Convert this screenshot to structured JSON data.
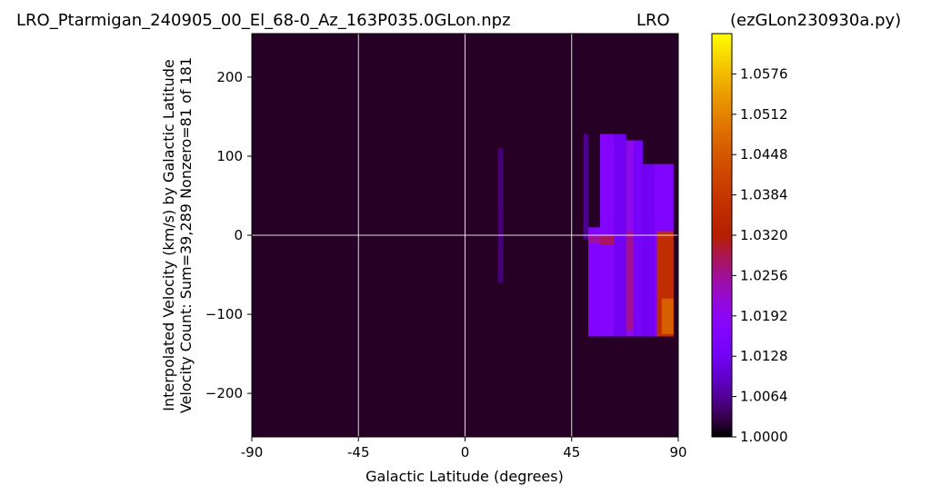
{
  "header": {
    "left_title": "LRO_Ptarmigan_240905_00_El_68-0_Az_163P035.0GLon.npz",
    "center_title": "LRO",
    "right_title": "(ezGLon230930a.py)"
  },
  "chart_data": {
    "type": "heatmap",
    "xlabel": "Galactic Latitude (degrees)",
    "ylabel_line1": "Interpolated Velocity (km/s) by Galactic Latitude",
    "ylabel_line2": "Velocity Count: Sum=39,289 Nonzero=81 of 181",
    "xlim": [
      -90,
      90
    ],
    "ylim": [
      -255,
      255
    ],
    "x_ticks": [
      {
        "value": -90,
        "label": "-90"
      },
      {
        "value": -45,
        "label": "-45"
      },
      {
        "value": 0,
        "label": "0"
      },
      {
        "value": 45,
        "label": "45"
      },
      {
        "value": 90,
        "label": "90"
      }
    ],
    "y_ticks": [
      {
        "value": 200,
        "label": "200"
      },
      {
        "value": 100,
        "label": "100"
      },
      {
        "value": 0,
        "label": "0"
      },
      {
        "value": -100,
        "label": "−100"
      },
      {
        "value": -200,
        "label": "−200"
      }
    ],
    "grid_x": [
      -45,
      0,
      45
    ],
    "grid_y": [
      0
    ],
    "colorbar": {
      "min": 1.0,
      "max": 1.064,
      "colormap": "gnuplot",
      "ticks": [
        {
          "value": 1.0,
          "label": "1.0000"
        },
        {
          "value": 1.0064,
          "label": "1.0064"
        },
        {
          "value": 1.0128,
          "label": "1.0128"
        },
        {
          "value": 1.0192,
          "label": "1.0192"
        },
        {
          "value": 1.0256,
          "label": "1.0256"
        },
        {
          "value": 1.032,
          "label": "1.0320"
        },
        {
          "value": 1.0384,
          "label": "1.0384"
        },
        {
          "value": 1.0448,
          "label": "1.0448"
        },
        {
          "value": 1.0512,
          "label": "1.0512"
        },
        {
          "value": 1.0576,
          "label": "1.0576"
        }
      ]
    },
    "background_value": 1.0015,
    "regions": [
      {
        "lat": [
          14,
          16
        ],
        "vel": [
          -10,
          30
        ],
        "value": 1.017
      },
      {
        "lat": [
          14,
          16
        ],
        "vel": [
          -60,
          110
        ],
        "value": 1.005
      },
      {
        "lat": [
          50,
          52
        ],
        "vel": [
          -5,
          15
        ],
        "value": 1.012
      },
      {
        "lat": [
          50,
          52
        ],
        "vel": [
          -5,
          128
        ],
        "value": 1.006
      },
      {
        "lat": [
          52,
          57
        ],
        "vel": [
          -128,
          10
        ],
        "value": 1.016
      },
      {
        "lat": [
          52,
          57
        ],
        "vel": [
          -10,
          0
        ],
        "value": 1.025
      },
      {
        "lat": [
          57,
          63
        ],
        "vel": [
          -128,
          128
        ],
        "value": 1.017
      },
      {
        "lat": [
          57,
          63
        ],
        "vel": [
          -12,
          0
        ],
        "value": 1.028
      },
      {
        "lat": [
          63,
          68
        ],
        "vel": [
          -128,
          128
        ],
        "value": 1.013
      },
      {
        "lat": [
          68,
          71
        ],
        "vel": [
          -128,
          120
        ],
        "value": 1.02
      },
      {
        "lat": [
          68,
          71
        ],
        "vel": [
          -120,
          5
        ],
        "value": 1.026
      },
      {
        "lat": [
          71,
          75
        ],
        "vel": [
          -128,
          120
        ],
        "value": 1.014
      },
      {
        "lat": [
          75,
          80
        ],
        "vel": [
          -128,
          90
        ],
        "value": 1.013
      },
      {
        "lat": [
          80,
          88
        ],
        "vel": [
          -128,
          90
        ],
        "value": 1.016
      },
      {
        "lat": [
          81,
          88
        ],
        "vel": [
          -128,
          5
        ],
        "value": 1.036
      },
      {
        "lat": [
          83,
          88
        ],
        "vel": [
          -125,
          -80
        ],
        "value": 1.046
      }
    ]
  }
}
